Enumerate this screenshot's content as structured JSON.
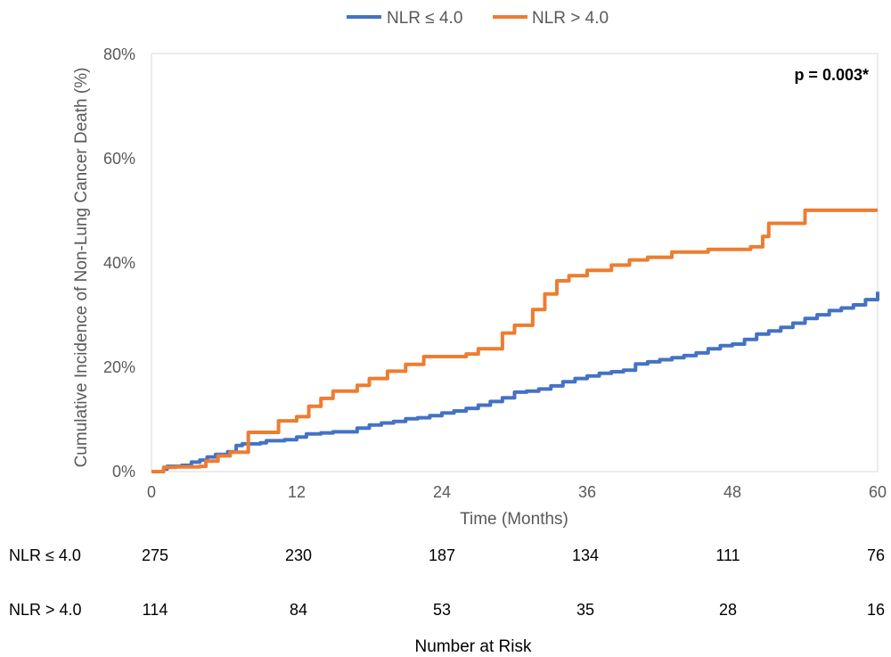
{
  "chart_data": {
    "type": "line",
    "xlabel": "Time (Months)",
    "ylabel": "Cumulative Incidence of Non-Lung Cancer Death (%)",
    "xlim": [
      0,
      60
    ],
    "ylim": [
      0,
      80
    ],
    "x_ticks": [
      "0",
      "12",
      "24",
      "36",
      "48",
      "60"
    ],
    "y_ticks": [
      "0%",
      "20%",
      "40%",
      "60%",
      "80%"
    ],
    "grid": false,
    "legend_position": "top-center",
    "annotation": "p = 0.003*",
    "series": [
      {
        "name": "NLR ≤ 4.0",
        "color": "#4472C4",
        "step": true,
        "points": [
          [
            0,
            0
          ],
          [
            1,
            0.5
          ],
          [
            1.3,
            1
          ],
          [
            2.5,
            1.2
          ],
          [
            3.3,
            1.8
          ],
          [
            4,
            2.2
          ],
          [
            4.6,
            2.8
          ],
          [
            5.3,
            3.3
          ],
          [
            6.3,
            3.8
          ],
          [
            7,
            5
          ],
          [
            7.5,
            5.3
          ],
          [
            9,
            5.5
          ],
          [
            9.5,
            5.9
          ],
          [
            11,
            6.1
          ],
          [
            12,
            6.6
          ],
          [
            12.8,
            7.2
          ],
          [
            14,
            7.4
          ],
          [
            15,
            7.6
          ],
          [
            16.5,
            7.6
          ],
          [
            17,
            8.3
          ],
          [
            18,
            8.9
          ],
          [
            19,
            9.3
          ],
          [
            20,
            9.6
          ],
          [
            21,
            10.1
          ],
          [
            22,
            10.3
          ],
          [
            23,
            10.7
          ],
          [
            24,
            11.2
          ],
          [
            25,
            11.6
          ],
          [
            26,
            12.1
          ],
          [
            27,
            12.7
          ],
          [
            28,
            13.4
          ],
          [
            29,
            14.1
          ],
          [
            30,
            15.2
          ],
          [
            31,
            15.4
          ],
          [
            32,
            15.8
          ],
          [
            33,
            16.4
          ],
          [
            34,
            17.2
          ],
          [
            35,
            17.8
          ],
          [
            36,
            18.3
          ],
          [
            37,
            18.8
          ],
          [
            38,
            19.1
          ],
          [
            39,
            19.4
          ],
          [
            40,
            20.6
          ],
          [
            41,
            21
          ],
          [
            42,
            21.4
          ],
          [
            43,
            21.8
          ],
          [
            44,
            22.2
          ],
          [
            45,
            22.7
          ],
          [
            46,
            23.5
          ],
          [
            47,
            24.1
          ],
          [
            48,
            24.4
          ],
          [
            49,
            25.3
          ],
          [
            50,
            26.3
          ],
          [
            51,
            26.9
          ],
          [
            52,
            27.6
          ],
          [
            53,
            28.4
          ],
          [
            54,
            29.3
          ],
          [
            55,
            30
          ],
          [
            56,
            30.8
          ],
          [
            57,
            31.3
          ],
          [
            58,
            31.9
          ],
          [
            59,
            32.9
          ],
          [
            60,
            34.4
          ]
        ]
      },
      {
        "name": "NLR > 4.0",
        "color": "#ED7D31",
        "step": true,
        "points": [
          [
            0,
            0
          ],
          [
            1,
            0.8
          ],
          [
            2,
            0.9
          ],
          [
            4,
            1
          ],
          [
            4.5,
            2
          ],
          [
            5.5,
            3
          ],
          [
            6.5,
            3.7
          ],
          [
            8,
            7.5
          ],
          [
            10.5,
            9.7
          ],
          [
            12,
            10.5
          ],
          [
            13,
            12.5
          ],
          [
            14,
            14
          ],
          [
            15,
            15.4
          ],
          [
            17,
            16.5
          ],
          [
            18,
            17.8
          ],
          [
            19.5,
            19.2
          ],
          [
            21,
            20.5
          ],
          [
            22.5,
            22
          ],
          [
            26,
            22.5
          ],
          [
            27,
            23.5
          ],
          [
            29,
            26.5
          ],
          [
            30,
            28
          ],
          [
            31.5,
            31
          ],
          [
            32.5,
            34
          ],
          [
            33.5,
            36.5
          ],
          [
            34.5,
            37.5
          ],
          [
            36,
            38.5
          ],
          [
            38,
            39.5
          ],
          [
            39.5,
            40.5
          ],
          [
            41,
            41
          ],
          [
            43,
            42
          ],
          [
            46,
            42.5
          ],
          [
            49.5,
            43
          ],
          [
            50.5,
            45
          ],
          [
            51,
            47.5
          ],
          [
            54,
            50
          ],
          [
            60,
            50
          ]
        ]
      }
    ]
  },
  "risk_table": {
    "title": "Number at Risk",
    "rows": [
      {
        "label": "NLR ≤ 4.0",
        "values": [
          "275",
          "230",
          "187",
          "134",
          "111",
          "76"
        ]
      },
      {
        "label": "NLR > 4.0",
        "values": [
          "114",
          "84",
          "53",
          "35",
          "28",
          "16"
        ]
      }
    ]
  }
}
